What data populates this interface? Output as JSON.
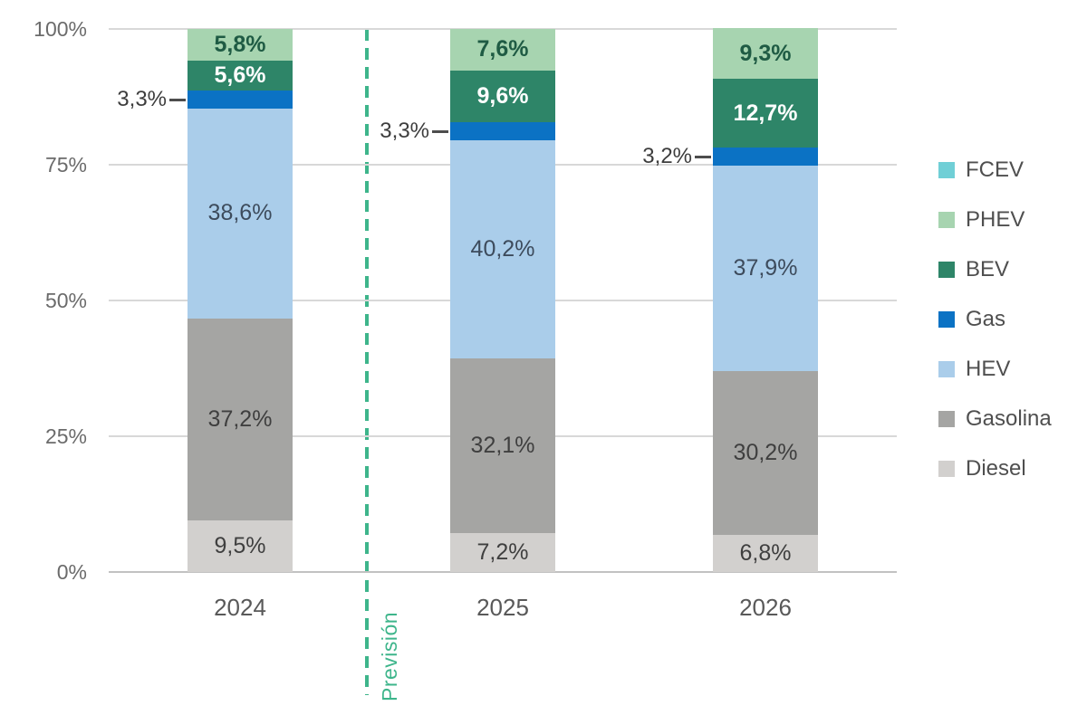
{
  "chart_data": {
    "type": "bar",
    "subtype": "100-percent-stacked-column",
    "title": "",
    "xlabel": "",
    "ylabel": "",
    "ylim": [
      0,
      100
    ],
    "grid": "horizontal",
    "legend_position": "right",
    "categories": [
      "2024",
      "2025",
      "2026"
    ],
    "series": [
      {
        "name": "Diesel",
        "color": "#d2d0ce",
        "values": [
          9.5,
          7.2,
          6.8
        ],
        "labels": [
          "9,5%",
          "7,2%",
          "6,8%"
        ],
        "label_color": "#3f3f3f",
        "label_bold": false,
        "label_mode": "inside"
      },
      {
        "name": "Gasolina",
        "color": "#a5a5a3",
        "values": [
          37.2,
          32.1,
          30.2
        ],
        "labels": [
          "37,2%",
          "32,1%",
          "30,2%"
        ],
        "label_color": "#3f3f3f",
        "label_bold": false,
        "label_mode": "inside"
      },
      {
        "name": "HEV",
        "color": "#aacdea",
        "values": [
          38.6,
          40.2,
          37.9
        ],
        "labels": [
          "38,6%",
          "40,2%",
          "37,9%"
        ],
        "label_color": "#3d4b5c",
        "label_bold": false,
        "label_mode": "inside"
      },
      {
        "name": "Gas",
        "color": "#0b72c4",
        "values": [
          3.3,
          3.3,
          3.2
        ],
        "labels": [
          "3,3%",
          "3,3%",
          "3,2%"
        ],
        "label_color": "#3d3d3d",
        "label_bold": false,
        "label_mode": "outside"
      },
      {
        "name": "BEV",
        "color": "#2e8568",
        "values": [
          5.6,
          9.6,
          12.7
        ],
        "labels": [
          "5,6%",
          "9,6%",
          "12,7%"
        ],
        "label_color": "#ffffff",
        "label_bold": true,
        "label_mode": "inside"
      },
      {
        "name": "PHEV",
        "color": "#a7d4b0",
        "values": [
          5.8,
          7.6,
          9.3
        ],
        "labels": [
          "5,8%",
          "7,6%",
          "9,3%"
        ],
        "label_color": "#1f5b44",
        "label_bold": true,
        "label_mode": "inside"
      },
      {
        "name": "FCEV",
        "color": "#70cfd6",
        "values": [
          0,
          0,
          0
        ],
        "labels": [
          "",
          "",
          ""
        ],
        "label_color": "#3d3d3d",
        "label_bold": false,
        "label_mode": "none"
      }
    ],
    "legend": [
      "FCEV",
      "PHEV",
      "BEV",
      "Gas",
      "HEV",
      "Gasolina",
      "Diesel"
    ],
    "y_axis": {
      "ticks": [
        {
          "label": "100%",
          "value": 100
        },
        {
          "label": "75%",
          "value": 75
        },
        {
          "label": "50%",
          "value": 50
        },
        {
          "label": "25%",
          "value": 25
        },
        {
          "label": "0%",
          "value": 0
        }
      ]
    },
    "forecast_label": "Previsión",
    "colors": {
      "forecast": "#3eb58b",
      "gridline": "#d8d8d8",
      "axis_line": "#c2c2c2",
      "axis_text": "#6b6b6b",
      "category_text": "#595959",
      "legend_text": "#4f4f4f",
      "leader_line": "#4d4d4d"
    }
  }
}
